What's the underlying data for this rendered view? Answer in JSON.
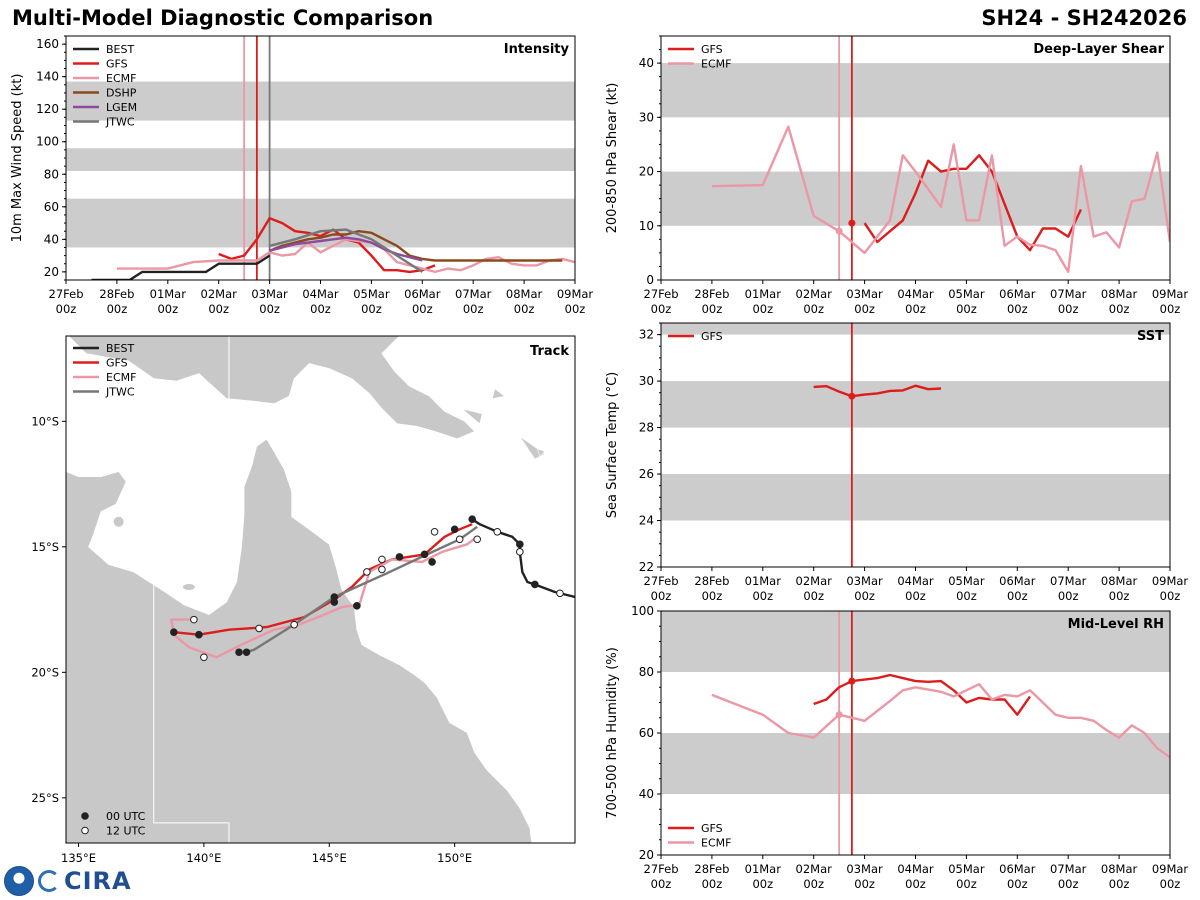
{
  "header": {
    "title": "Multi-Model Diagnostic Comparison",
    "storm_id": "SH24 - SH242026"
  },
  "logos": {
    "agency": "CIRA"
  },
  "colors": {
    "BEST": "#222222",
    "GFS": "#dd1c1c",
    "ECMF": "#ec97a5",
    "DSHP": "#8b4a1e",
    "LGEM": "#8e4aa0",
    "JTWC": "#777777",
    "band": "#cccccc",
    "land": "#c8c8c8"
  },
  "time_axis": {
    "ticks": [
      "27Feb\n00z",
      "28Feb\n00z",
      "01Mar\n00z",
      "02Mar\n00z",
      "03Mar\n00z",
      "04Mar\n00z",
      "05Mar\n00z",
      "06Mar\n00z",
      "07Mar\n00z",
      "08Mar\n00z",
      "09Mar\n00z"
    ]
  },
  "chart_data": [
    {
      "id": "intensity",
      "type": "line",
      "title": "Intensity",
      "ylabel": "10m Max Wind Speed (kt)",
      "ylim": [
        15,
        165
      ],
      "yticks": [
        20,
        40,
        60,
        80,
        100,
        120,
        140,
        160
      ],
      "xlim": [
        0,
        10
      ],
      "bands": [
        [
          35,
          65
        ],
        [
          82,
          96
        ],
        [
          113,
          137
        ]
      ],
      "vlines": [
        {
          "x": 3.5,
          "model": "ECMF"
        },
        {
          "x": 3.75,
          "model": "GFS"
        },
        {
          "x": 4.0,
          "model": "JTWC"
        }
      ],
      "legend": [
        "BEST",
        "GFS",
        "ECMF",
        "DSHP",
        "LGEM",
        "JTWC"
      ],
      "series": [
        {
          "name": "BEST",
          "x": [
            0.5,
            1.25,
            1.5,
            2.75,
            3.0,
            3.75,
            4.0
          ],
          "y": [
            15,
            15,
            20,
            20,
            25,
            25,
            30
          ]
        },
        {
          "name": "GFS",
          "x": [
            3.0,
            3.25,
            3.5,
            3.75,
            4.0,
            4.25,
            4.5,
            4.75,
            5.0,
            5.25,
            5.5,
            5.75,
            6.0,
            6.25,
            6.5,
            6.75,
            7.0,
            7.25
          ],
          "y": [
            31,
            28,
            30,
            40,
            53,
            50,
            45,
            44,
            42,
            46,
            40,
            38,
            30,
            21,
            21,
            20,
            21,
            24
          ]
        },
        {
          "name": "ECMF",
          "x": [
            1.0,
            1.5,
            1.75,
            2.0,
            2.5,
            3.0,
            3.25,
            3.5,
            3.75,
            4.0,
            4.25,
            4.5,
            4.75,
            5.0,
            5.25,
            5.5,
            5.75,
            6.0,
            6.25,
            6.5,
            6.75,
            7.0,
            7.25,
            7.5,
            7.75,
            8.0,
            8.25,
            8.5,
            8.75,
            9.0,
            9.25,
            9.5,
            9.75,
            10.0
          ],
          "y": [
            22,
            22,
            22,
            22,
            26,
            27,
            27,
            27,
            27,
            32,
            30,
            31,
            38,
            32,
            36,
            40,
            39,
            38,
            34,
            26,
            24,
            22,
            20,
            22,
            21,
            24,
            28,
            29,
            25,
            24,
            24,
            27,
            28,
            26
          ]
        },
        {
          "name": "DSHP",
          "x": [
            4.0,
            4.25,
            4.5,
            4.75,
            5.0,
            5.25,
            5.5,
            5.75,
            6.0,
            6.25,
            6.5,
            6.75,
            7.0,
            7.25,
            7.5,
            7.75,
            8.0,
            8.25,
            8.5,
            8.75,
            9.0,
            9.25,
            9.5,
            9.75
          ],
          "y": [
            33,
            36,
            38,
            40,
            41,
            43,
            43,
            45,
            44,
            40,
            36,
            30,
            28,
            27,
            27,
            27,
            27,
            27,
            27,
            27,
            27,
            27,
            27,
            27
          ]
        },
        {
          "name": "LGEM",
          "x": [
            4.0,
            4.25,
            4.5,
            4.75,
            5.0,
            5.25,
            5.5,
            5.75,
            6.0,
            6.25,
            6.5,
            6.75,
            7.0
          ],
          "y": [
            33,
            35,
            37,
            38,
            39,
            40,
            41,
            40,
            38,
            34,
            31,
            29,
            27
          ]
        },
        {
          "name": "JTWC",
          "x": [
            4.0,
            4.5,
            5.0,
            5.5,
            6.0,
            7.0
          ],
          "y": [
            36,
            40,
            45,
            46,
            40,
            20
          ]
        }
      ]
    },
    {
      "id": "shear",
      "type": "line",
      "title": "Deep-Layer Shear",
      "ylabel": "200-850 hPa Shear (kt)",
      "ylim": [
        0,
        45
      ],
      "yticks": [
        0,
        10,
        20,
        30,
        40
      ],
      "xlim": [
        0,
        10
      ],
      "bands": [
        [
          10,
          20
        ],
        [
          30,
          40
        ]
      ],
      "vlines": [
        {
          "x": 4.5,
          "model": "ECMF",
          "offset": -1.0
        },
        {
          "x": 4.75,
          "model": "GFS",
          "offset": -1.0
        }
      ],
      "legend": [
        "GFS",
        "ECMF"
      ],
      "series": [
        {
          "name": "GFS",
          "x": [
            4.0,
            4.25,
            4.5,
            4.75,
            5.0,
            5.25,
            5.5,
            5.75,
            6.0,
            6.25,
            6.5,
            6.75,
            7.0,
            7.25,
            7.5,
            7.75,
            8.0,
            8.25,
            8.5,
            8.75,
            9.0,
            9.25
          ],
          "y": [
            10.5,
            7,
            9,
            11,
            16,
            22,
            20,
            20.5,
            20.5,
            23,
            20,
            14,
            8,
            5.5,
            9.5,
            9.5,
            8,
            13,
            null,
            null,
            null,
            null
          ]
        },
        {
          "name": "ECMF",
          "x": [
            1.0,
            2.0,
            2.5,
            3.0,
            3.5,
            4.0,
            4.5,
            4.75,
            5.0,
            5.5,
            5.75,
            6.0,
            6.25,
            6.5,
            6.75,
            7.0,
            7.25,
            7.5,
            7.75,
            8.0,
            8.25,
            8.5,
            8.75,
            9.0,
            9.25,
            9.5,
            9.75,
            10.0
          ],
          "y": [
            17.3,
            17.5,
            28.3,
            11.8,
            9,
            5,
            11,
            23,
            20,
            13.5,
            25,
            11,
            11,
            23,
            6.3,
            8,
            6.5,
            6.3,
            5.5,
            1.5,
            21,
            8,
            8.8,
            6,
            14.5,
            15,
            23.5,
            7
          ]
        }
      ]
    },
    {
      "id": "sst",
      "type": "line",
      "title": "SST",
      "ylabel": "Sea Surface Temp (°C)",
      "ylim": [
        22,
        32.5
      ],
      "yticks": [
        22,
        24,
        26,
        28,
        30,
        32
      ],
      "xlim": [
        0,
        10
      ],
      "bands": [
        [
          24,
          26
        ],
        [
          28,
          30
        ],
        [
          32,
          34
        ]
      ],
      "vlines": [
        {
          "x": 3.75,
          "model": "GFS"
        }
      ],
      "legend": [
        "GFS"
      ],
      "series": [
        {
          "name": "GFS",
          "x": [
            3.0,
            3.25,
            3.5,
            3.75,
            4.0,
            4.25,
            4.5,
            4.75,
            5.0,
            5.25,
            5.5
          ],
          "y": [
            29.75,
            29.78,
            29.55,
            29.35,
            29.42,
            29.47,
            29.58,
            29.6,
            29.8,
            29.65,
            29.68
          ]
        }
      ]
    },
    {
      "id": "rh",
      "type": "line",
      "title": "Mid-Level RH",
      "ylabel": "700-500 hPa Humidity (%)",
      "ylim": [
        20,
        100
      ],
      "yticks": [
        20,
        40,
        60,
        80,
        100
      ],
      "xlim": [
        0,
        10
      ],
      "bands": [
        [
          40,
          60
        ],
        [
          80,
          100
        ]
      ],
      "vlines": [
        {
          "x": 4.5,
          "model": "ECMF",
          "offset": -1.0
        },
        {
          "x": 4.75,
          "model": "GFS",
          "offset": -1.0
        }
      ],
      "legend": [
        "GFS",
        "ECMF"
      ],
      "series": [
        {
          "name": "GFS",
          "x": [
            3.0,
            3.25,
            3.5,
            3.75,
            4.0,
            4.25,
            4.5,
            4.75,
            5.0,
            5.25,
            5.5,
            5.75,
            6.0,
            6.25,
            6.5,
            6.75,
            7.0,
            7.25
          ],
          "y": [
            69.5,
            71,
            75,
            77,
            77.5,
            78,
            79,
            78,
            77,
            76.8,
            77,
            74,
            70,
            71.5,
            71,
            71,
            66,
            72
          ]
        },
        {
          "name": "ECMF",
          "x": [
            1.0,
            2.0,
            2.5,
            3.0,
            3.5,
            4.0,
            4.5,
            4.75,
            5.0,
            5.5,
            5.75,
            6.0,
            6.25,
            6.5,
            6.75,
            7.0,
            7.25,
            7.5,
            7.75,
            8.0,
            8.25,
            8.5,
            8.75,
            9.0,
            9.25,
            9.5,
            9.75,
            10.0
          ],
          "y": [
            72.5,
            66,
            60,
            58.5,
            66,
            64,
            70.5,
            74,
            75,
            73.5,
            72,
            74,
            76,
            71,
            72.5,
            72,
            74,
            70,
            66,
            65,
            65,
            64,
            61,
            58.5,
            62.5,
            60,
            55,
            52
          ]
        }
      ]
    },
    {
      "id": "track",
      "type": "scatter",
      "title": "Track",
      "legend": [
        "BEST",
        "GFS",
        "ECMF",
        "JTWC"
      ],
      "marker_legend": [
        "00 UTC",
        "12 UTC"
      ],
      "xticks": [
        "135°E",
        "140°E",
        "145°E",
        "150°E"
      ],
      "yticks": [
        "10°S",
        "15°S",
        "20°S",
        "25°S"
      ],
      "lon_range": [
        134.5,
        154.8
      ],
      "lat_range": [
        -26.8,
        -6.6
      ],
      "tracks": [
        {
          "name": "BEST",
          "lon": [
            154.8,
            154.0,
            153.2,
            152.9,
            152.7,
            152.6,
            152.6,
            152.3,
            151.7,
            151.0,
            150.7
          ],
          "lat": [
            -17.0,
            -16.8,
            -16.5,
            -16.4,
            -16.0,
            -15.2,
            -14.9,
            -14.6,
            -14.4,
            -14.1,
            -13.9
          ],
          "dots": [
            [
              153.2,
              -16.5,
              "00"
            ],
            [
              154.2,
              -16.85,
              "12"
            ],
            [
              152.6,
              -15.2,
              "12"
            ],
            [
              152.6,
              -14.9,
              "00"
            ],
            [
              151.7,
              -14.4,
              "12"
            ],
            [
              150.7,
              -13.9,
              "00"
            ]
          ]
        },
        {
          "name": "GFS",
          "lon": [
            150.7,
            150.2,
            149.6,
            148.8,
            147.5,
            146.6,
            145.9,
            145.2,
            144.0,
            142.5,
            141.0,
            139.8,
            138.8
          ],
          "lat": [
            -14.1,
            -14.3,
            -14.6,
            -15.3,
            -15.5,
            -15.9,
            -16.6,
            -17.1,
            -17.8,
            -18.2,
            -18.3,
            -18.5,
            -18.4
          ],
          "dots": [
            [
              150.0,
              -14.3,
              "00"
            ],
            [
              148.8,
              -15.3,
              "00"
            ],
            [
              147.8,
              -15.4,
              "00"
            ],
            [
              145.2,
              -17.0,
              "00"
            ],
            [
              139.8,
              -18.5,
              "00"
            ],
            [
              138.8,
              -18.4,
              "00"
            ]
          ]
        },
        {
          "name": "ECMF",
          "lon": [
            150.9,
            150.5,
            149.5,
            148.7,
            147.5,
            146.6,
            146.2,
            145.5,
            144.8,
            143.8,
            142.8,
            141.5,
            140.5,
            139.4,
            138.8,
            138.7,
            139.5
          ],
          "lat": [
            -14.6,
            -14.9,
            -15.2,
            -15.6,
            -15.5,
            -16.0,
            -17.3,
            -17.4,
            -17.7,
            -18.1,
            -18.3,
            -18.9,
            -19.4,
            -19.0,
            -18.5,
            -17.9,
            -17.9
          ],
          "dots": [
            [
              146.1,
              -17.35,
              "00"
            ],
            [
              149.1,
              -15.6,
              "00"
            ],
            [
              147.1,
              -15.9,
              "12"
            ],
            [
              142.2,
              -18.25,
              "12"
            ],
            [
              140.0,
              -19.4,
              "12"
            ],
            [
              139.6,
              -17.9,
              "12"
            ]
          ]
        },
        {
          "name": "JTWC",
          "lon": [
            150.9,
            150.2,
            148.9,
            147.2,
            145.2,
            143.6,
            142.0,
            141.7
          ],
          "lat": [
            -14.2,
            -14.7,
            -15.3,
            -16.1,
            -17.0,
            -18.1,
            -19.1,
            -19.2
          ],
          "dots": [
            [
              150.9,
              -14.7,
              "12"
            ],
            [
              150.2,
              -14.7,
              "12"
            ],
            [
              149.2,
              -14.4,
              "12"
            ],
            [
              147.1,
              -15.5,
              "12"
            ],
            [
              146.5,
              -16.0,
              "12"
            ],
            [
              143.6,
              -18.1,
              "12"
            ],
            [
              141.7,
              -19.2,
              "00"
            ],
            [
              141.4,
              -19.2,
              "00"
            ],
            [
              145.2,
              -17.2,
              "00"
            ]
          ]
        }
      ],
      "legend_marker_labels": {
        "dot_filled": "00 UTC",
        "dot_open": "12 UTC"
      }
    }
  ]
}
